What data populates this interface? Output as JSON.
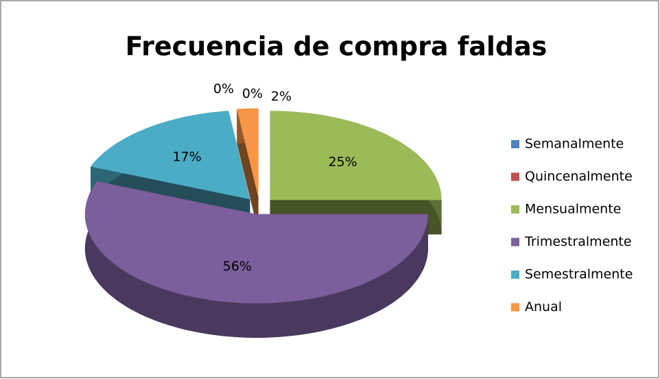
{
  "chart_data": {
    "type": "pie",
    "title": "Frecuencia de compra faldas",
    "categories": [
      "Semanalmente",
      "Quincenalmente",
      "Mensualmente",
      "Trimestralmente",
      "Semestralmente",
      "Anual"
    ],
    "values": [
      0,
      0,
      25,
      56,
      17,
      2
    ],
    "value_labels": [
      "0%",
      "0%",
      "25%",
      "56%",
      "17%",
      "2%"
    ],
    "colors": [
      "#4f81bd",
      "#c0504d",
      "#9bbb59",
      "#7b5e9c",
      "#4bacc6",
      "#f79646"
    ],
    "legend": "right",
    "3d": true
  }
}
